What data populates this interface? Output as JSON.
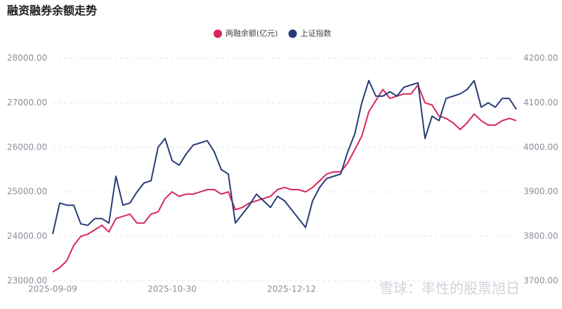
{
  "chart_data": {
    "type": "line",
    "title": "融资融券余额走势",
    "annotation": "雪球：率性的股票旭日",
    "categories": [
      "2025-09-09",
      null,
      null,
      null,
      null,
      null,
      null,
      null,
      null,
      null,
      null,
      null,
      null,
      null,
      null,
      null,
      null,
      "2025-10-30",
      null,
      null,
      null,
      null,
      null,
      null,
      null,
      null,
      null,
      null,
      null,
      null,
      null,
      null,
      null,
      null,
      "2025-12-12",
      null,
      null,
      null,
      null,
      null,
      null,
      null,
      null,
      null,
      null,
      null,
      null,
      null,
      null,
      null,
      null,
      null,
      null,
      null,
      null,
      null,
      null,
      null,
      null,
      null,
      null,
      null,
      null,
      null,
      null,
      null,
      null
    ],
    "series": [
      {
        "name": "两融余额(亿元)",
        "color": "#d6285a",
        "values": [
          23200,
          23300,
          23450,
          23800,
          24000,
          24050,
          24150,
          24250,
          24100,
          24400,
          24450,
          24500,
          24300,
          24300,
          24500,
          24550,
          24850,
          25000,
          24900,
          24950,
          24950,
          25000,
          25050,
          25050,
          24950,
          25000,
          24600,
          24650,
          24750,
          24800,
          24850,
          24900,
          25050,
          25100,
          25050,
          25050,
          25000,
          25100,
          25250,
          25400,
          25450,
          25450,
          25650,
          25950,
          26250,
          26800,
          27050,
          27300,
          27100,
          27150,
          27200,
          27200,
          27400,
          27000,
          26950,
          26700,
          26650,
          26550,
          26400,
          26550,
          26750,
          26600,
          26500,
          26500,
          26600,
          26650,
          26600
        ]
      },
      {
        "name": "上证指数",
        "color": "#283c78",
        "axis": "y2",
        "values": [
          3805,
          3875,
          3870,
          3870,
          3828,
          3825,
          3840,
          3840,
          3830,
          3935,
          3870,
          3875,
          3900,
          3920,
          3925,
          4000,
          4020,
          3970,
          3960,
          3985,
          4005,
          4010,
          4015,
          3990,
          3950,
          3940,
          3830,
          3850,
          3870,
          3895,
          3880,
          3865,
          3890,
          3880,
          3860,
          3840,
          3820,
          3880,
          3910,
          3930,
          3935,
          3940,
          3990,
          4030,
          4100,
          4150,
          4115,
          4115,
          4125,
          4115,
          4135,
          4140,
          4145,
          4020,
          4070,
          4060,
          4110,
          4115,
          4120,
          4130,
          4150,
          4090,
          4100,
          4090,
          4110,
          4110,
          4085
        ]
      }
    ],
    "ylim": [
      23000,
      28000
    ],
    "yticks": [
      {
        "value": 23000,
        "label": "23000.00"
      },
      {
        "value": 24000,
        "label": "24000.00"
      },
      {
        "value": 25000,
        "label": "25000.00"
      },
      {
        "value": 26000,
        "label": "26000.00"
      },
      {
        "value": 27000,
        "label": "27000.00"
      },
      {
        "value": 28000,
        "label": "28000.00"
      }
    ],
    "y2lim": [
      3700,
      4200
    ],
    "y2ticks": [
      {
        "value": 3700,
        "label": "3700.00"
      },
      {
        "value": 3800,
        "label": "3800.00"
      },
      {
        "value": 3900,
        "label": "3900.00"
      },
      {
        "value": 4000,
        "label": "4000.00"
      },
      {
        "value": 4100,
        "label": "4100.00"
      },
      {
        "value": 4200,
        "label": "4200.00"
      }
    ],
    "grid": true,
    "legend": "top"
  }
}
